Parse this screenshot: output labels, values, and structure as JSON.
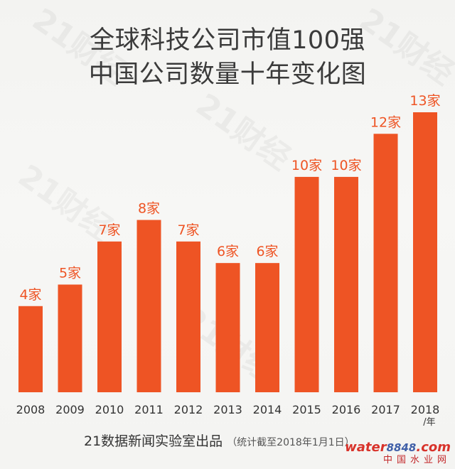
{
  "title_line1": "全球科技公司市值100强",
  "title_line2": "中国公司数量十年变化图",
  "chart_data": {
    "type": "bar",
    "categories": [
      "2008",
      "2009",
      "2010",
      "2011",
      "2012",
      "2013",
      "2014",
      "2015",
      "2016",
      "2017",
      "2018"
    ],
    "values": [
      4,
      5,
      7,
      8,
      7,
      6,
      6,
      10,
      10,
      12,
      13
    ],
    "value_suffix": "家",
    "x_unit_label": "/年",
    "title": "全球科技公司市值100强 中国公司数量十年变化图",
    "xlabel": "",
    "ylabel": "",
    "ylim": [
      0,
      13
    ],
    "grid": false,
    "bar_color": "#ee5424",
    "label_color": "#ee5424"
  },
  "footer": {
    "source": "21数据新闻实验室出品",
    "note": "（统计截至2018年1月1日）"
  },
  "watermark": {
    "brand_top": "water",
    "brand_num": "8848",
    "brand_suffix": ".com",
    "brand_bottom": "中国水业网",
    "background_text": "21财经"
  }
}
